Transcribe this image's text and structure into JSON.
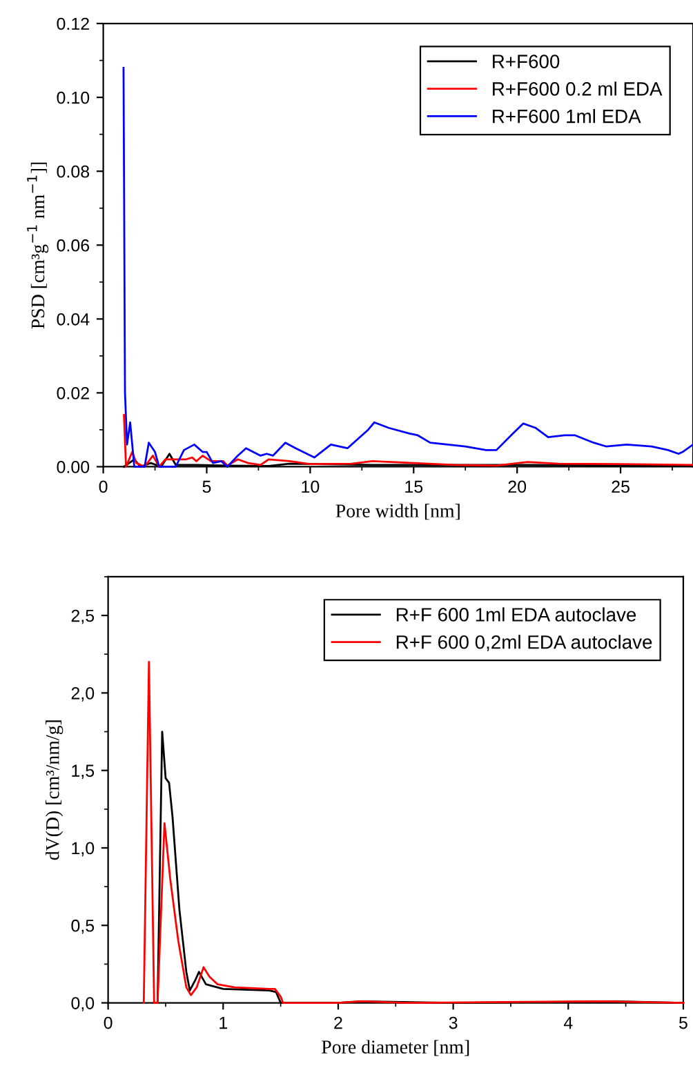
{
  "chart_data": [
    {
      "type": "line",
      "xlabel": "Pore width [nm]",
      "ylabel": "PSD [cm³g$^{−1}$ nm$^{−1}$]]",
      "xlim": [
        0,
        28.5
      ],
      "xticks": [
        0,
        5,
        10,
        15,
        20,
        25
      ],
      "ylim": [
        0,
        0.12
      ],
      "yticks": [
        {
          "value": 0,
          "label": "0.00"
        },
        {
          "value": 0.02,
          "label": "0.02"
        },
        {
          "value": 0.04,
          "label": "0.04"
        },
        {
          "value": 0.06,
          "label": "0.06"
        },
        {
          "value": 0.08,
          "label": "0.08"
        },
        {
          "value": 0.1,
          "label": "0.10"
        },
        {
          "value": 0.12,
          "label": "0.12"
        }
      ],
      "legend": "top right",
      "grid": false,
      "marker": "none",
      "line_style": "solid",
      "series": [
        {
          "name": "R+F600",
          "color": "#000000",
          "x": [
            1.0,
            1.5,
            1.8,
            2.3,
            2.8,
            3.2,
            3.5,
            4.5,
            6,
            8,
            9,
            13,
            20,
            28.5
          ],
          "values": [
            0,
            0.002,
            0,
            0.001,
            0,
            0.0035,
            0.0005,
            0.0005,
            0.0003,
            0.0002,
            0.0008,
            0.0005,
            0.0005,
            0.0002
          ]
        },
        {
          "name": "R+F600 0.2 ml EDA",
          "color": "#ff0000",
          "x": [
            1.0,
            1.1,
            1.4,
            1.6,
            2.0,
            2.4,
            2.7,
            3.0,
            3.5,
            4.0,
            4.3,
            4.5,
            4.8,
            5.2,
            5.8,
            6.0,
            6.5,
            7.0,
            7.6,
            8.0,
            9.0,
            10,
            12,
            13,
            15,
            17,
            19,
            20.5,
            22,
            25,
            28.5
          ],
          "values": [
            0.014,
            0,
            0.004,
            0.001,
            0,
            0.003,
            0,
            0.002,
            0.002,
            0.002,
            0.0025,
            0.0015,
            0.003,
            0.0015,
            0.0015,
            0.0003,
            0.002,
            0.001,
            0.0005,
            0.002,
            0.0015,
            0.0007,
            0.0008,
            0.0015,
            0.001,
            0.0005,
            0.0003,
            0.0013,
            0.0008,
            0.0007,
            0.0005
          ]
        },
        {
          "name": "R+F600 1ml EDA",
          "color": "#0000ff",
          "x": [
            0.98,
            1.05,
            1.15,
            1.3,
            1.5,
            2.0,
            2.2,
            2.5,
            2.7,
            3.5,
            3.9,
            4.4,
            4.8,
            5.0,
            5.3,
            5.7,
            6.0,
            6.5,
            6.9,
            7.6,
            7.9,
            8.2,
            8.8,
            9.3,
            10.2,
            11.0,
            11.8,
            12.8,
            13.1,
            13.8,
            14.8,
            15.2,
            15.8,
            17.5,
            18.5,
            19.0,
            19.8,
            20.3,
            20.9,
            21.5,
            22.3,
            22.8,
            23.7,
            24.3,
            25.3,
            26.5,
            27.3,
            27.8,
            28.0,
            28.5
          ],
          "values": [
            0.108,
            0.02,
            0.006,
            0.012,
            0.0,
            0.0,
            0.0065,
            0.004,
            0.0,
            0.0,
            0.0045,
            0.006,
            0.004,
            0.004,
            0.001,
            0.0015,
            0.0,
            0.003,
            0.005,
            0.003,
            0.0035,
            0.003,
            0.0065,
            0.005,
            0.0025,
            0.006,
            0.005,
            0.01,
            0.012,
            0.0105,
            0.009,
            0.0085,
            0.0065,
            0.0055,
            0.0045,
            0.0045,
            0.009,
            0.0117,
            0.0105,
            0.008,
            0.0085,
            0.0085,
            0.0065,
            0.0055,
            0.006,
            0.0055,
            0.0045,
            0.0035,
            0.004,
            0.006
          ]
        }
      ]
    },
    {
      "type": "line",
      "xlabel": "Pore diameter [nm]",
      "ylabel": "dV(D) [cm³/nm/g]",
      "xlim": [
        0,
        5
      ],
      "xticks": [
        0,
        1,
        2,
        3,
        4,
        5
      ],
      "ylim": [
        0,
        2.75
      ],
      "yticks": [
        {
          "value": 0,
          "label": "0,0"
        },
        {
          "value": 0.5,
          "label": "0,5"
        },
        {
          "value": 1.0,
          "label": "1,0"
        },
        {
          "value": 1.5,
          "label": "1,5"
        },
        {
          "value": 2.0,
          "label": "2,0"
        },
        {
          "value": 2.5,
          "label": "2,5"
        }
      ],
      "legend": "top right",
      "grid": false,
      "marker": "none",
      "line_style": "solid",
      "series": [
        {
          "name": "R+F 600 1ml EDA autoclave",
          "color": "#000000",
          "x": [
            0.41,
            0.43,
            0.47,
            0.5,
            0.53,
            0.56,
            0.62,
            0.68,
            0.71,
            0.76,
            0.79,
            0.85,
            1.0,
            1.4,
            1.46,
            1.5,
            2.0,
            2.2,
            3.0,
            4.4,
            5.0
          ],
          "values": [
            0,
            0,
            1.75,
            1.45,
            1.42,
            1.2,
            0.6,
            0.2,
            0.08,
            0.15,
            0.2,
            0.12,
            0.09,
            0.08,
            0.07,
            0,
            0,
            0.01,
            0,
            0.01,
            0
          ]
        },
        {
          "name": "R+F 600 0,2ml EDA autoclave",
          "color": "#ff0000",
          "x": [
            0.31,
            0.355,
            0.4,
            0.43,
            0.49,
            0.54,
            0.61,
            0.68,
            0.72,
            0.77,
            0.83,
            0.88,
            0.95,
            1.1,
            1.4,
            1.45,
            1.5,
            1.52,
            2.0,
            2.2,
            2.6,
            4.3,
            5.0
          ],
          "values": [
            0,
            2.2,
            0,
            0,
            1.16,
            0.8,
            0.4,
            0.1,
            0.05,
            0.1,
            0.23,
            0.17,
            0.12,
            0.1,
            0.09,
            0.09,
            0.04,
            0,
            0,
            0.01,
            0,
            0.01,
            0
          ]
        }
      ]
    }
  ]
}
